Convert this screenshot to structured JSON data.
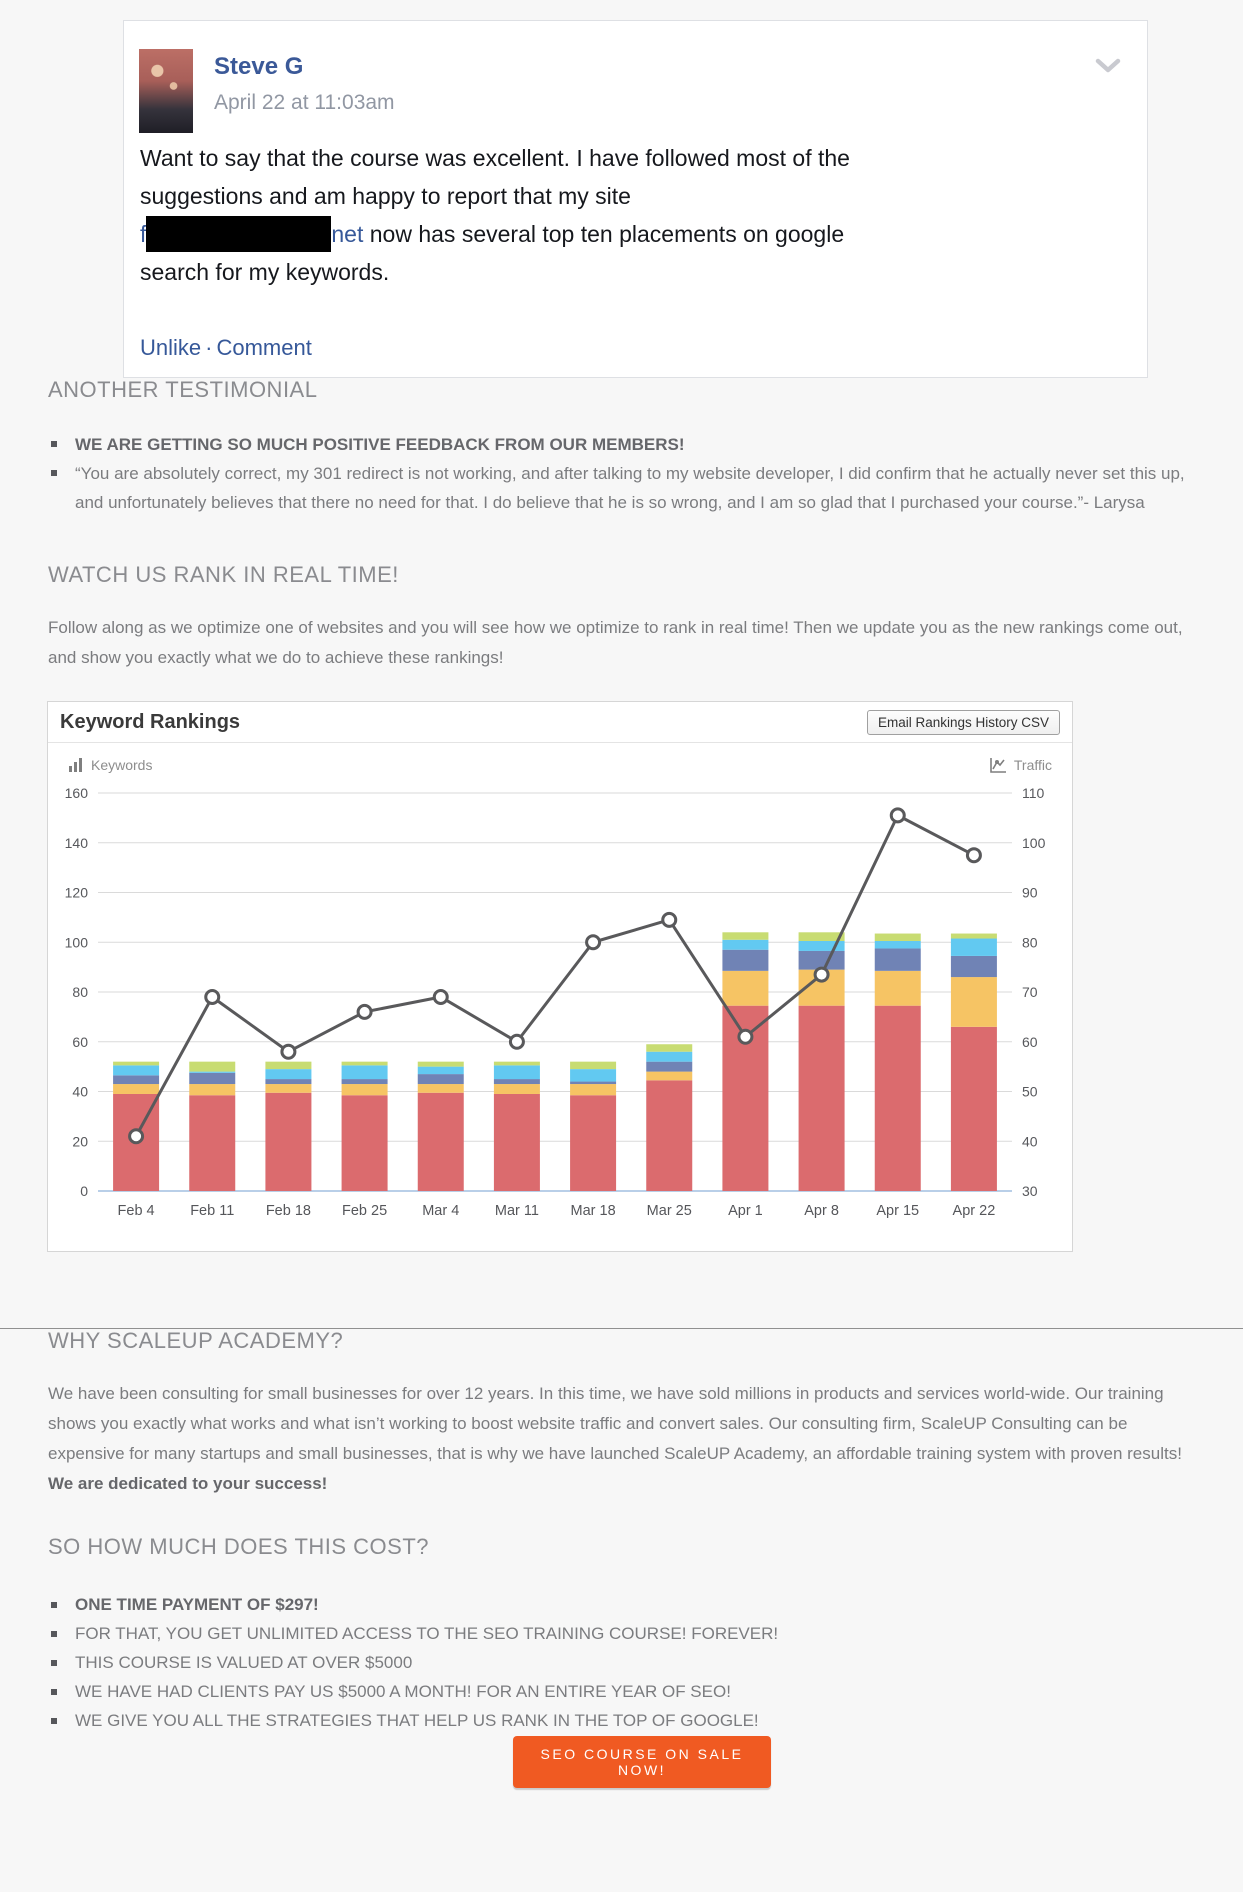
{
  "facebook_post": {
    "author": "Steve G",
    "timestamp": "April 22 at 11:03am",
    "lines": [
      "Want to say that the course was excellent. I have followed most of the",
      "suggestions and am happy to report that my site",
      " now has several top ten placements on google",
      "search for my keywords."
    ],
    "link_prefix": "f",
    "link_suffix": "net",
    "actions": {
      "unlike": "Unlike",
      "separator": "·",
      "comment": "Comment"
    }
  },
  "another_testimonial": {
    "heading": "ANOTHER TESTIMONIAL",
    "bullet_bold": "WE ARE GETTING SO MUCH POSITIVE FEEDBACK FROM OUR MEMBERS!",
    "bullet_quote": "“You are absolutely correct, my 301 redirect is not working, and after talking to my website developer, I did confirm that he actually never set this up, and unfortunately believes that there no need for that. I do believe that he is so wrong, and I am so glad that I purchased your course.”- Larysa"
  },
  "watch_section": {
    "heading": "WATCH US RANK IN REAL TIME!",
    "paragraph": "Follow along as we optimize one of websites and you will see how we optimize to rank in real time! Then we update you as the new rankings come out, and show you exactly what we do to achieve these rankings!"
  },
  "chart": {
    "title": "Keyword Rankings",
    "csv_button": "Email Rankings History CSV",
    "legend_left": "Keywords",
    "legend_right": "Traffic"
  },
  "chart_data": {
    "type": "bar",
    "subtype": "stacked-bars-with-line",
    "title": "Keyword Rankings",
    "categories": [
      "Feb 4",
      "Feb 11",
      "Feb 18",
      "Feb 25",
      "Mar 4",
      "Mar 11",
      "Mar 18",
      "Mar 25",
      "Apr 1",
      "Apr 8",
      "Apr 15",
      "Apr 22"
    ],
    "left_axis": {
      "label": "Keywords",
      "min": 0,
      "max": 160,
      "ticks": [
        0,
        20,
        40,
        60,
        80,
        100,
        120,
        140,
        160
      ]
    },
    "right_axis": {
      "label": "Traffic",
      "min": 30,
      "max": 110,
      "ticks": [
        30,
        40,
        50,
        60,
        70,
        80,
        90,
        100,
        110
      ]
    },
    "series": [
      {
        "name": "keywords-segment-red",
        "color": "#db6b6e",
        "values": [
          39,
          38.5,
          39.5,
          38.5,
          39.5,
          39,
          38.5,
          44.5,
          74.5,
          74.5,
          74.5,
          66
        ]
      },
      {
        "name": "keywords-segment-yellow",
        "color": "#f6c464",
        "values": [
          4,
          4.5,
          3.5,
          4.5,
          3.5,
          4,
          4.5,
          3.5,
          14,
          14.5,
          14,
          20
        ]
      },
      {
        "name": "keywords-segment-blue",
        "color": "#7083b5",
        "values": [
          3.5,
          4.5,
          2,
          2,
          4,
          2,
          1,
          4,
          8.5,
          7.5,
          9,
          8.5
        ]
      },
      {
        "name": "keywords-segment-cyan",
        "color": "#62c9f1",
        "values": [
          4,
          0.5,
          4,
          5.5,
          3,
          5.5,
          5,
          4,
          4,
          4,
          3,
          7
        ]
      },
      {
        "name": "keywords-segment-green",
        "color": "#c8dc72",
        "values": [
          1.5,
          4,
          3,
          1.5,
          2,
          1.5,
          3,
          3,
          3,
          3.5,
          3,
          2
        ]
      }
    ],
    "line_series": {
      "name": "Traffic",
      "color": "#59595b",
      "axis": "right",
      "values": [
        41,
        69,
        58,
        66,
        69,
        60,
        80,
        84.5,
        61,
        73.5,
        105.5,
        97.5
      ]
    },
    "grid": true,
    "legend_position": "top"
  },
  "why_section": {
    "heading": "WHY SCALEUP ACADEMY?",
    "paragraph": "We have been consulting for small businesses for over 12 years. In this time, we have sold millions in products and services world-wide. Our training shows you exactly what works and what isn’t working to boost website traffic and convert sales. Our consulting firm, ScaleUP Consulting can be expensive for many startups and small businesses, that is why we have launched ScaleUP Academy, an affordable training system with proven results! ",
    "paragraph_bold": "We are dedicated to your success!"
  },
  "cost_section": {
    "heading": "SO HOW MUCH DOES THIS COST?",
    "bullets": [
      "ONE TIME PAYMENT OF $297!",
      "FOR THAT, YOU GET UNLIMITED ACCESS TO THE SEO TRAINING COURSE! FOREVER!",
      "THIS COURSE IS VALUED AT OVER $5000",
      "WE HAVE HAD CLIENTS PAY US $5000 A MONTH! FOR AN ENTIRE YEAR OF SEO!",
      "WE GIVE YOU ALL THE STRATEGIES THAT HELP US RANK IN THE TOP OF GOOGLE!"
    ]
  },
  "cta": {
    "label": "SEO COURSE ON SALE NOW!",
    "color": "#f05a22"
  }
}
